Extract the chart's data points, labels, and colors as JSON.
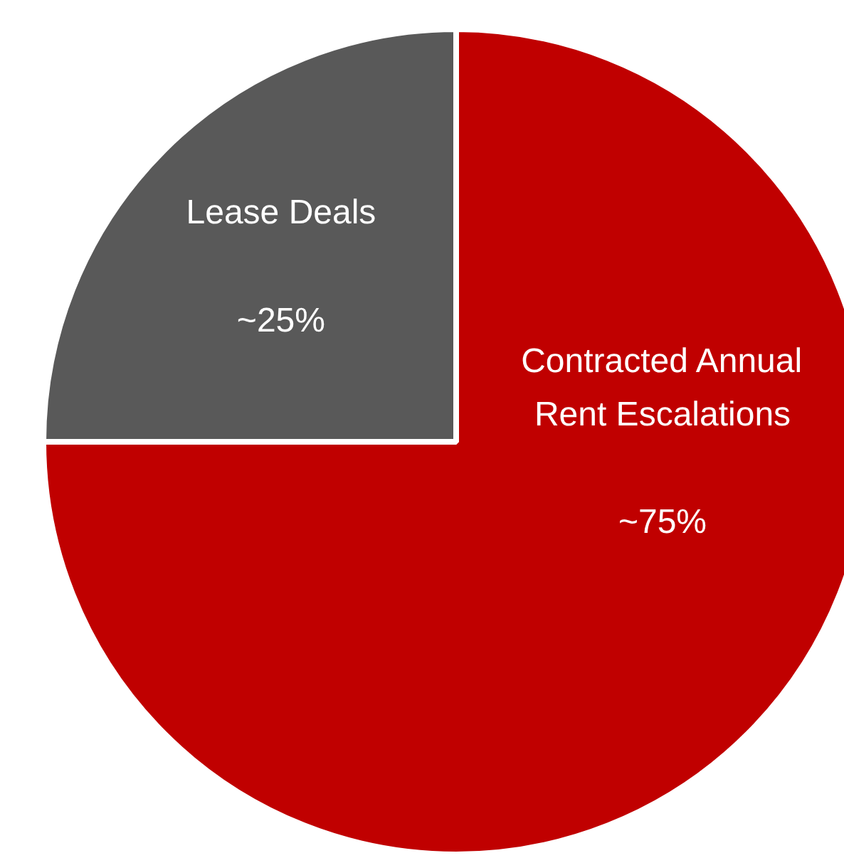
{
  "chart_data": {
    "type": "pie",
    "categories": [
      "Contracted Annual Rent Escalations",
      "Lease Deals"
    ],
    "values": [
      75,
      25
    ],
    "colors": [
      "#c00000",
      "#595959"
    ],
    "value_labels": [
      "~75%",
      "~25%"
    ]
  }
}
